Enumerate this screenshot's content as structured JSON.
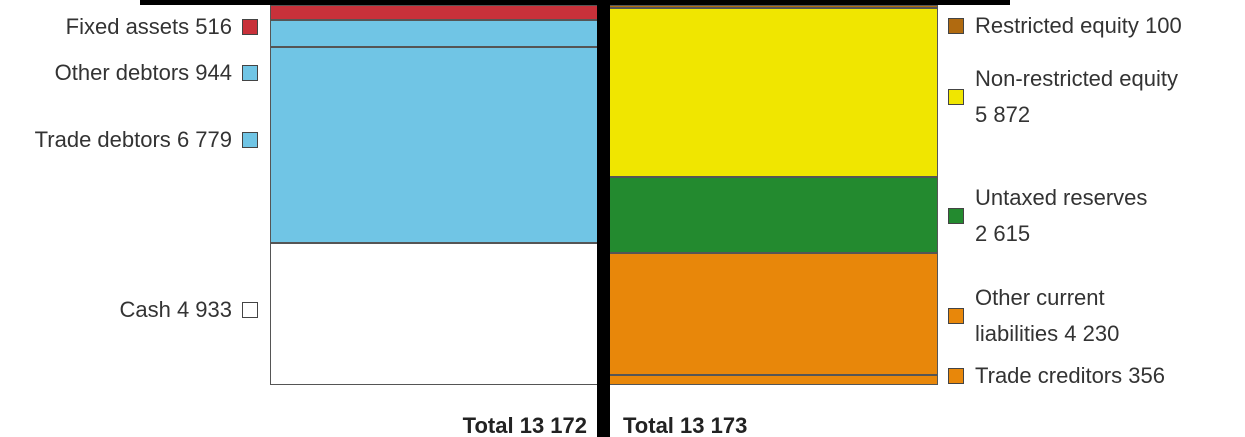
{
  "chart_data": {
    "type": "balance-sheet",
    "left": {
      "items": [
        {
          "name": "Fixed assets",
          "value": 516,
          "value_label": "516",
          "color": "#c8313a"
        },
        {
          "name": "Other debtors",
          "value": 944,
          "value_label": "944",
          "color": "#70c5e5"
        },
        {
          "name": "Trade debtors",
          "value": 6779,
          "value_label": "6 779",
          "color": "#70c5e5"
        },
        {
          "name": "Cash",
          "value": 4933,
          "value_label": "4 933",
          "color": "#ffffff"
        }
      ],
      "total": {
        "label": "Total",
        "value": 13172,
        "value_label": "13 172"
      }
    },
    "right": {
      "items": [
        {
          "name": "Restricted equity",
          "value": 100,
          "value_label": "100",
          "color": "#b06a10"
        },
        {
          "name": "Non-restricted equity",
          "value": 5872,
          "value_label": "5 872",
          "color": "#f0e600"
        },
        {
          "name": "Untaxed reserves",
          "value": 2615,
          "value_label": "2 615",
          "color": "#238a2f"
        },
        {
          "name": "Other current liabilities",
          "value": 4230,
          "value_label": "4 230",
          "color": "#e8870a"
        },
        {
          "name": "Trade creditors",
          "value": 356,
          "value_label": "356",
          "color": "#e8870a"
        }
      ],
      "total": {
        "label": "Total",
        "value": 13173,
        "value_label": "13 173"
      }
    }
  }
}
